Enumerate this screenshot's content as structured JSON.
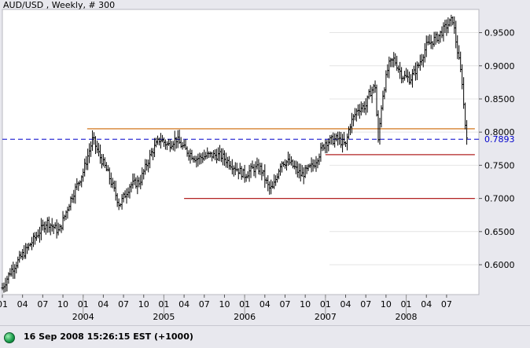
{
  "title": "AUD/USD , Weekly, # 300",
  "status": {
    "text": "16 Sep 2008 15:26:15  EST (+1000)",
    "indicator_color": "#1a9a4a"
  },
  "colors": {
    "plot_bg": "#ffffff",
    "bars": "#000000",
    "support_lines": "#b22222",
    "resistance_line": "#cc6600",
    "dashed_price": "#0000cc",
    "price_label": "#0000cc"
  },
  "chart_data": {
    "type": "ohlc",
    "title": "AUD/USD , Weekly, # 300",
    "y_tick_labels": [
      "0.6000",
      "0.6500",
      "0.7000",
      "0.7500",
      "0.8000",
      "0.8500",
      "0.9000",
      "0.9500"
    ],
    "y_ticks": [
      0.6,
      0.65,
      0.7,
      0.75,
      0.8,
      0.85,
      0.9,
      0.95
    ],
    "ylim": [
      0.555,
      0.985
    ],
    "xlim": [
      2003.0,
      2008.9
    ],
    "x_month_labels": [
      "01",
      "04",
      "07",
      "10",
      "01",
      "04",
      "07",
      "10",
      "01",
      "04",
      "07",
      "10",
      "01",
      "04",
      "07",
      "10",
      "01",
      "04",
      "07",
      "10",
      "01",
      "04",
      "07"
    ],
    "x_year_labels": [
      "2004",
      "2005",
      "2006",
      "2007",
      "2008"
    ],
    "current_price_label": "0.7893",
    "current_price": 0.7893,
    "horizontal_lines": [
      {
        "name": "resistance",
        "y": 0.805,
        "x_start": 2004.05,
        "x_end": 2008.85
      },
      {
        "name": "support-upper",
        "y": 0.766,
        "x_start": 2007.0,
        "x_end": 2008.85
      },
      {
        "name": "support-lower",
        "y": 0.7,
        "x_start": 2005.25,
        "x_end": 2008.85
      }
    ],
    "anchors": [
      [
        2003.0,
        0.565
      ],
      [
        2003.1,
        0.59
      ],
      [
        2003.25,
        0.615
      ],
      [
        2003.4,
        0.64
      ],
      [
        2003.55,
        0.665
      ],
      [
        2003.7,
        0.65
      ],
      [
        2003.85,
        0.7
      ],
      [
        2004.0,
        0.74
      ],
      [
        2004.12,
        0.79
      ],
      [
        2004.2,
        0.765
      ],
      [
        2004.3,
        0.74
      ],
      [
        2004.45,
        0.69
      ],
      [
        2004.58,
        0.72
      ],
      [
        2004.7,
        0.725
      ],
      [
        2004.85,
        0.77
      ],
      [
        2004.95,
        0.79
      ],
      [
        2005.05,
        0.78
      ],
      [
        2005.15,
        0.79
      ],
      [
        2005.25,
        0.775
      ],
      [
        2005.4,
        0.76
      ],
      [
        2005.55,
        0.765
      ],
      [
        2005.7,
        0.765
      ],
      [
        2005.85,
        0.75
      ],
      [
        2006.0,
        0.735
      ],
      [
        2006.1,
        0.745
      ],
      [
        2006.2,
        0.745
      ],
      [
        2006.3,
        0.715
      ],
      [
        2006.35,
        0.715
      ],
      [
        2006.45,
        0.755
      ],
      [
        2006.55,
        0.755
      ],
      [
        2006.7,
        0.735
      ],
      [
        2006.85,
        0.75
      ],
      [
        2007.0,
        0.785
      ],
      [
        2007.15,
        0.79
      ],
      [
        2007.25,
        0.78
      ],
      [
        2007.3,
        0.81
      ],
      [
        2007.4,
        0.835
      ],
      [
        2007.5,
        0.84
      ],
      [
        2007.55,
        0.86
      ],
      [
        2007.62,
        0.87
      ],
      [
        2007.65,
        0.78
      ],
      [
        2007.7,
        0.85
      ],
      [
        2007.78,
        0.9
      ],
      [
        2007.85,
        0.91
      ],
      [
        2007.95,
        0.885
      ],
      [
        2008.05,
        0.88
      ],
      [
        2008.15,
        0.9
      ],
      [
        2008.25,
        0.93
      ],
      [
        2008.4,
        0.945
      ],
      [
        2008.5,
        0.96
      ],
      [
        2008.58,
        0.97
      ],
      [
        2008.6,
        0.95
      ],
      [
        2008.65,
        0.91
      ],
      [
        2008.7,
        0.87
      ],
      [
        2008.72,
        0.82
      ],
      [
        2008.74,
        0.805
      ],
      [
        2008.76,
        0.789
      ]
    ]
  }
}
